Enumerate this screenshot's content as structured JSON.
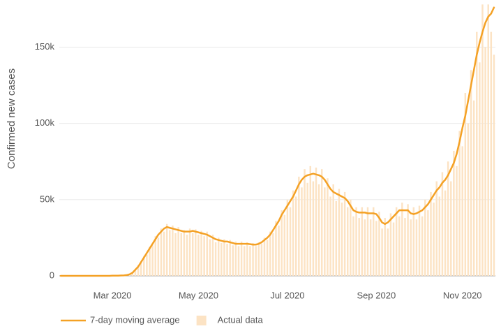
{
  "chart_data": {
    "type": "combo",
    "y_label": "Confirmed new cases",
    "categories": [
      null,
      null,
      null,
      null,
      null,
      null,
      null,
      null,
      null,
      null,
      null,
      null,
      null,
      null,
      null,
      null,
      null,
      null,
      "Mar 2020",
      null,
      null,
      null,
      null,
      null,
      null,
      null,
      null,
      null,
      null,
      null,
      null,
      null,
      null,
      null,
      null,
      null,
      null,
      null,
      null,
      null,
      null,
      null,
      null,
      null,
      null,
      null,
      null,
      null,
      "May 2020",
      null,
      null,
      null,
      null,
      null,
      null,
      null,
      null,
      null,
      null,
      null,
      null,
      null,
      null,
      null,
      null,
      null,
      null,
      null,
      null,
      null,
      null,
      null,
      null,
      null,
      null,
      null,
      null,
      null,
      null,
      "Jul 2020",
      null,
      null,
      null,
      null,
      null,
      null,
      null,
      null,
      null,
      null,
      null,
      null,
      null,
      null,
      null,
      null,
      null,
      null,
      null,
      null,
      null,
      null,
      null,
      null,
      null,
      null,
      null,
      null,
      null,
      null,
      "Sep 2020",
      null,
      null,
      null,
      null,
      null,
      null,
      null,
      null,
      null,
      null,
      null,
      null,
      null,
      null,
      null,
      null,
      null,
      null,
      null,
      null,
      null,
      null,
      null,
      null,
      null,
      null,
      null,
      null,
      null,
      "Nov 2020",
      null,
      null,
      null,
      null,
      null,
      null,
      null,
      null,
      null,
      null,
      null
    ],
    "series": [
      {
        "name": "Actual data",
        "type": "bar",
        "color": "#fce3c4",
        "values": [
          0,
          0,
          0,
          0,
          0,
          0,
          0,
          0,
          0,
          0,
          0,
          0,
          0,
          0,
          0,
          0,
          0,
          0,
          100,
          100,
          200,
          300,
          400,
          700,
          1200,
          2500,
          3500,
          7000,
          8500,
          13000,
          14000,
          19000,
          20000,
          26000,
          25000,
          31000,
          29000,
          34000,
          30000,
          33000,
          28000,
          32000,
          28000,
          30000,
          27000,
          31000,
          28000,
          30500,
          27000,
          29500,
          26000,
          29000,
          24000,
          27000,
          22000,
          25000,
          21500,
          24000,
          21000,
          23500,
          20000,
          22500,
          19500,
          22500,
          19500,
          22000,
          19500,
          21500,
          19500,
          22000,
          21000,
          25000,
          23500,
          29000,
          28000,
          36000,
          33000,
          43000,
          40000,
          50000,
          45000,
          56000,
          52000,
          65000,
          58000,
          70000,
          61000,
          72000,
          62000,
          71000,
          60000,
          70000,
          58000,
          64000,
          52000,
          60000,
          49000,
          57000,
          48000,
          55000,
          45000,
          50000,
          39000,
          45000,
          38000,
          45000,
          37000,
          45000,
          37000,
          45000,
          36000,
          42000,
          31000,
          38000,
          31000,
          41000,
          35000,
          45000,
          39000,
          48000,
          38000,
          47000,
          37000,
          45000,
          37000,
          46000,
          39000,
          50000,
          43000,
          55000,
          48000,
          62000,
          52000,
          68000,
          56000,
          75000,
          62000,
          82000,
          72000,
          95000,
          85000,
          120000,
          100000,
          135000,
          115000,
          160000,
          140000,
          178000,
          150000,
          178000,
          160000,
          145000
        ]
      },
      {
        "name": "7-day moving average",
        "type": "line",
        "color": "#f4a125",
        "values": [
          0,
          0,
          0,
          0,
          0,
          0,
          0,
          0,
          0,
          0,
          0,
          0,
          0,
          0,
          0,
          0,
          0,
          0,
          100,
          100,
          100,
          200,
          300,
          500,
          1000,
          2000,
          4000,
          6000,
          9000,
          12000,
          15000,
          18000,
          21000,
          24000,
          27000,
          29000,
          31000,
          32000,
          31500,
          31000,
          30500,
          30000,
          29500,
          29000,
          29000,
          29000,
          29500,
          29000,
          28500,
          28000,
          27500,
          27000,
          26000,
          25000,
          24000,
          23500,
          23000,
          22500,
          22500,
          22000,
          21500,
          21000,
          21000,
          21000,
          21000,
          21000,
          20800,
          20500,
          20500,
          21000,
          22000,
          23500,
          25000,
          27000,
          30000,
          33000,
          36000,
          40000,
          43000,
          46000,
          49000,
          52000,
          56000,
          60000,
          63000,
          65000,
          66000,
          66500,
          67000,
          66500,
          66000,
          65000,
          63000,
          60000,
          57000,
          55000,
          54000,
          53000,
          52000,
          51000,
          49000,
          46000,
          43000,
          42000,
          41500,
          41500,
          41500,
          41000,
          41000,
          41000,
          40500,
          38000,
          35000,
          34000,
          35000,
          37000,
          39000,
          41000,
          43000,
          43000,
          43000,
          43000,
          41000,
          40500,
          41000,
          42000,
          43000,
          45000,
          47000,
          50000,
          53000,
          56000,
          58000,
          61000,
          63000,
          66000,
          70000,
          74000,
          80000,
          88000,
          97000,
          105000,
          115000,
          125000,
          135000,
          145000,
          153000,
          160000,
          166000,
          170000,
          172000,
          176000
        ]
      }
    ],
    "ylim": [
      0,
      180000
    ],
    "yticks": [
      0,
      {
        "value": 50000,
        "label": "50k"
      },
      {
        "value": 100000,
        "label": "100k"
      },
      {
        "value": 150000,
        "label": "150k"
      }
    ],
    "grid": true
  }
}
